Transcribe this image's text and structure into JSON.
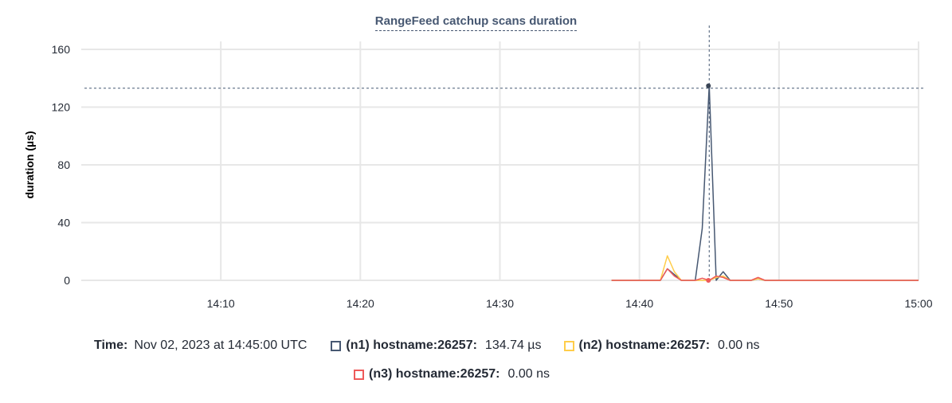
{
  "chart_data": {
    "type": "line",
    "title": "RangeFeed catchup scans duration",
    "ylabel": "duration (µs)",
    "ylim": [
      0,
      160
    ],
    "yticks": [
      0,
      40,
      80,
      120,
      160
    ],
    "xlim": [
      "14:00",
      "15:00"
    ],
    "xticks": [
      "14:10",
      "14:20",
      "14:30",
      "14:40",
      "14:50",
      "15:00"
    ],
    "grid": true,
    "x": [
      "14:38:00",
      "14:38:30",
      "14:39:00",
      "14:39:30",
      "14:40:00",
      "14:40:30",
      "14:41:00",
      "14:41:30",
      "14:42:00",
      "14:42:30",
      "14:43:00",
      "14:43:30",
      "14:44:00",
      "14:44:30",
      "14:45:00",
      "14:45:30",
      "14:46:00",
      "14:46:30",
      "14:47:00",
      "14:47:30",
      "14:48:00",
      "14:48:30",
      "14:49:00",
      "14:49:30",
      "14:50:00",
      "14:51:00",
      "14:52:00",
      "14:53:00",
      "14:54:00",
      "14:55:00",
      "14:56:00",
      "14:57:00",
      "14:58:00",
      "14:59:00",
      "15:00:00"
    ],
    "series": [
      {
        "name": "(n1) hostname:26257",
        "color": "#475872",
        "values": [
          0,
          0,
          0,
          0,
          0,
          0,
          0,
          0,
          8,
          4,
          0,
          0,
          0,
          36,
          135,
          0,
          6,
          0,
          0,
          0,
          0,
          1,
          0,
          0,
          0,
          0,
          0,
          0,
          0,
          0,
          0,
          0,
          0,
          0,
          0
        ]
      },
      {
        "name": "(n2) hostname:26257",
        "color": "#ffcd4a",
        "values": [
          0,
          0,
          0,
          0,
          0,
          0,
          0,
          0,
          17,
          6,
          0,
          0,
          0,
          0,
          0,
          2,
          3,
          0,
          0,
          0,
          0,
          1,
          0,
          0,
          0,
          0,
          0,
          0,
          0,
          0,
          0,
          0,
          0,
          0,
          0
        ]
      },
      {
        "name": "(n3) hostname:26257",
        "color": "#ee5a5a",
        "values": [
          0,
          0,
          0,
          0,
          0,
          0,
          0,
          0,
          8,
          3,
          0,
          0,
          0,
          1.5,
          0,
          3,
          2,
          0,
          0,
          0,
          0,
          2,
          0,
          0,
          0,
          0,
          0,
          0,
          0,
          0,
          0,
          0,
          0,
          0,
          0
        ]
      }
    ],
    "hover": {
      "time": "14:45:00",
      "value": 134.74
    }
  },
  "legend": {
    "time_label": "Time:",
    "time_value": "Nov 02, 2023 at 14:45:00 UTC",
    "items": [
      {
        "label": "(n1) hostname:26257:",
        "value": "134.74 µs"
      },
      {
        "label": "(n2) hostname:26257:",
        "value": "0.00 ns"
      },
      {
        "label": "(n3) hostname:26257:",
        "value": "0.00 ns"
      }
    ]
  }
}
